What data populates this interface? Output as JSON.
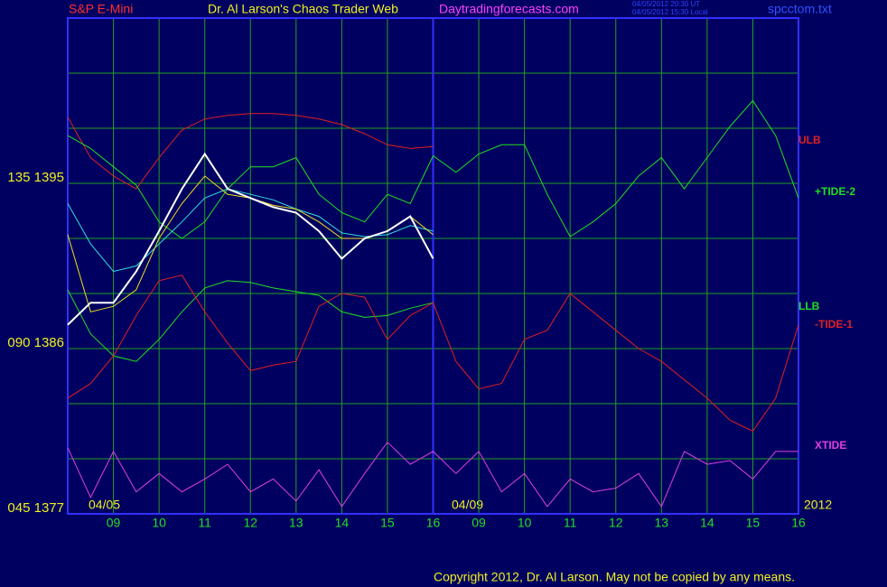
{
  "chart_data": {
    "type": "line",
    "symbol": "S&P E-Mini",
    "title": "Dr. Al Larson's Chaos Trader Web",
    "site": "Daytradingforecasts.com",
    "timestamps": [
      "04/05/2012 20:30 UT",
      "04/05/2012 15:30 Local"
    ],
    "file": "spcctom.txt",
    "dates": [
      "04/05",
      "04/09"
    ],
    "year": "2012",
    "copyright": "Copyright 2012, Dr. Al Larson. May not be copied by any means.",
    "xlim": [
      0,
      16
    ],
    "ylim": [
      1377,
      1404
    ],
    "yticks": [
      {
        "value": 1377,
        "label": "045 1377"
      },
      {
        "value": 1386,
        "label": "090 1386"
      },
      {
        "value": 1395,
        "label": "135 1395"
      }
    ],
    "ygrid": [
      1380,
      1383,
      1386,
      1389,
      1392,
      1395,
      1398,
      1401
    ],
    "xticks": [
      {
        "value": 1,
        "label": "09"
      },
      {
        "value": 2,
        "label": "10"
      },
      {
        "value": 3,
        "label": "11"
      },
      {
        "value": 4,
        "label": "12"
      },
      {
        "value": 5,
        "label": "13"
      },
      {
        "value": 6,
        "label": "14"
      },
      {
        "value": 7,
        "label": "15"
      },
      {
        "value": 8,
        "label": "16"
      },
      {
        "value": 9,
        "label": "09"
      },
      {
        "value": 10,
        "label": "10"
      },
      {
        "value": 11,
        "label": "11"
      },
      {
        "value": 12,
        "label": "12"
      },
      {
        "value": 13,
        "label": "13"
      },
      {
        "value": 14,
        "label": "14"
      },
      {
        "value": 15,
        "label": "15"
      },
      {
        "value": 16,
        "label": "16"
      }
    ],
    "grid": true,
    "x": [
      0,
      0.5,
      1,
      1.5,
      2,
      2.5,
      3,
      3.5,
      4,
      4.5,
      5,
      5.5,
      6,
      6.5,
      7,
      7.5,
      8,
      8.5,
      9,
      9.5,
      10,
      10.5,
      11,
      11.5,
      12,
      12.5,
      13,
      13.5,
      14,
      14.5,
      15,
      15.5,
      16
    ],
    "series": [
      {
        "name": "ULB",
        "color": "#e02020",
        "values": [
          1398.6,
          1396.4,
          1395.4,
          1394.7,
          1396.4,
          1397.9,
          1398.5,
          1398.7,
          1398.8,
          1398.8,
          1398.7,
          1398.5,
          1398.2,
          1397.7,
          1397.1,
          1396.9,
          1397.0,
          null,
          null,
          null,
          null,
          null,
          null,
          null,
          null,
          null,
          null,
          null,
          null,
          null,
          null,
          null,
          null
        ]
      },
      {
        "name": "+TIDE-2",
        "color": "#20e020",
        "values": [
          1397.6,
          1396.9,
          1395.9,
          1394.9,
          1392.9,
          1392.0,
          1392.9,
          1394.7,
          1395.9,
          1395.9,
          1396.4,
          1394.4,
          1393.4,
          1392.9,
          1394.4,
          1393.9,
          1396.5,
          1395.6,
          1396.6,
          1397.1,
          1397.1,
          1394.4,
          1392.1,
          1392.9,
          1393.9,
          1395.4,
          1396.4,
          1394.7,
          1396.4,
          1398.1,
          1399.5,
          1397.6,
          1394.2
        ]
      },
      {
        "name": "LLB",
        "color": "#20e020",
        "values": [
          1389.2,
          1386.8,
          1385.6,
          1385.3,
          1386.5,
          1388.0,
          1389.3,
          1389.7,
          1389.6,
          1389.3,
          1389.1,
          1388.9,
          1388.0,
          1387.7,
          1387.8,
          1388.2,
          1388.5,
          null,
          null,
          null,
          null,
          null,
          null,
          null,
          null,
          null,
          null,
          null,
          null,
          null,
          null,
          null,
          null
        ]
      },
      {
        "name": "-TIDE-1",
        "color": "#e02020",
        "values": [
          1383.3,
          1384.1,
          1385.6,
          1387.8,
          1389.7,
          1390.0,
          1388.0,
          1386.3,
          1384.8,
          1385.1,
          1385.3,
          1388.3,
          1389.0,
          1388.8,
          1386.5,
          1387.8,
          1388.5,
          1385.3,
          1383.8,
          1384.1,
          1386.5,
          1387.0,
          1389.0,
          1388.0,
          1387.0,
          1386.0,
          1385.3,
          1384.3,
          1383.3,
          1382.1,
          1381.5,
          1383.3,
          1387.3
        ]
      },
      {
        "name": "XTIDE",
        "color": "#e040e0",
        "values": [
          1380.6,
          1377.9,
          1380.4,
          1378.2,
          1379.2,
          1378.2,
          1378.9,
          1379.7,
          1378.2,
          1378.9,
          1377.7,
          1379.4,
          1377.4,
          1379.2,
          1380.9,
          1379.7,
          1380.4,
          1379.2,
          1380.4,
          1378.2,
          1379.2,
          1377.4,
          1378.9,
          1378.2,
          1378.4,
          1379.2,
          1377.4,
          1380.4,
          1379.7,
          1379.9,
          1378.9,
          1380.4,
          1380.4
        ]
      },
      {
        "color": "#30e0e0",
        "values": [
          1393.9,
          1391.7,
          1390.2,
          1390.5,
          1391.7,
          1392.9,
          1394.2,
          1394.7,
          1394.4,
          1394.1,
          1393.6,
          1393.2,
          1392.3,
          1392.1,
          1392.2,
          1392.7,
          1392.4,
          null,
          null,
          null,
          null,
          null,
          null,
          null,
          null,
          null,
          null,
          null,
          null,
          null,
          null,
          null,
          null
        ]
      },
      {
        "color": "#f0e020",
        "values": [
          1392.2,
          1388.0,
          1388.3,
          1389.2,
          1392.0,
          1393.9,
          1395.4,
          1394.4,
          1394.2,
          1393.8,
          1393.6,
          1392.9,
          1392.0,
          1392.0,
          1392.4,
          1393.2,
          1392.2,
          null,
          null,
          null,
          null,
          null,
          null,
          null,
          null,
          null,
          null,
          null,
          null,
          null,
          null,
          null,
          null
        ]
      },
      {
        "color": "#ffffff",
        "values": [
          1387.3,
          1388.5,
          1388.5,
          1390.2,
          1392.4,
          1394.7,
          1396.6,
          1394.7,
          1394.2,
          1393.7,
          1393.4,
          1392.4,
          1390.9,
          1392.0,
          1392.4,
          1393.2,
          1390.9,
          null,
          null,
          null,
          null,
          null,
          null,
          null,
          null,
          null,
          null,
          null,
          null,
          null,
          null,
          null,
          null
        ]
      }
    ]
  }
}
